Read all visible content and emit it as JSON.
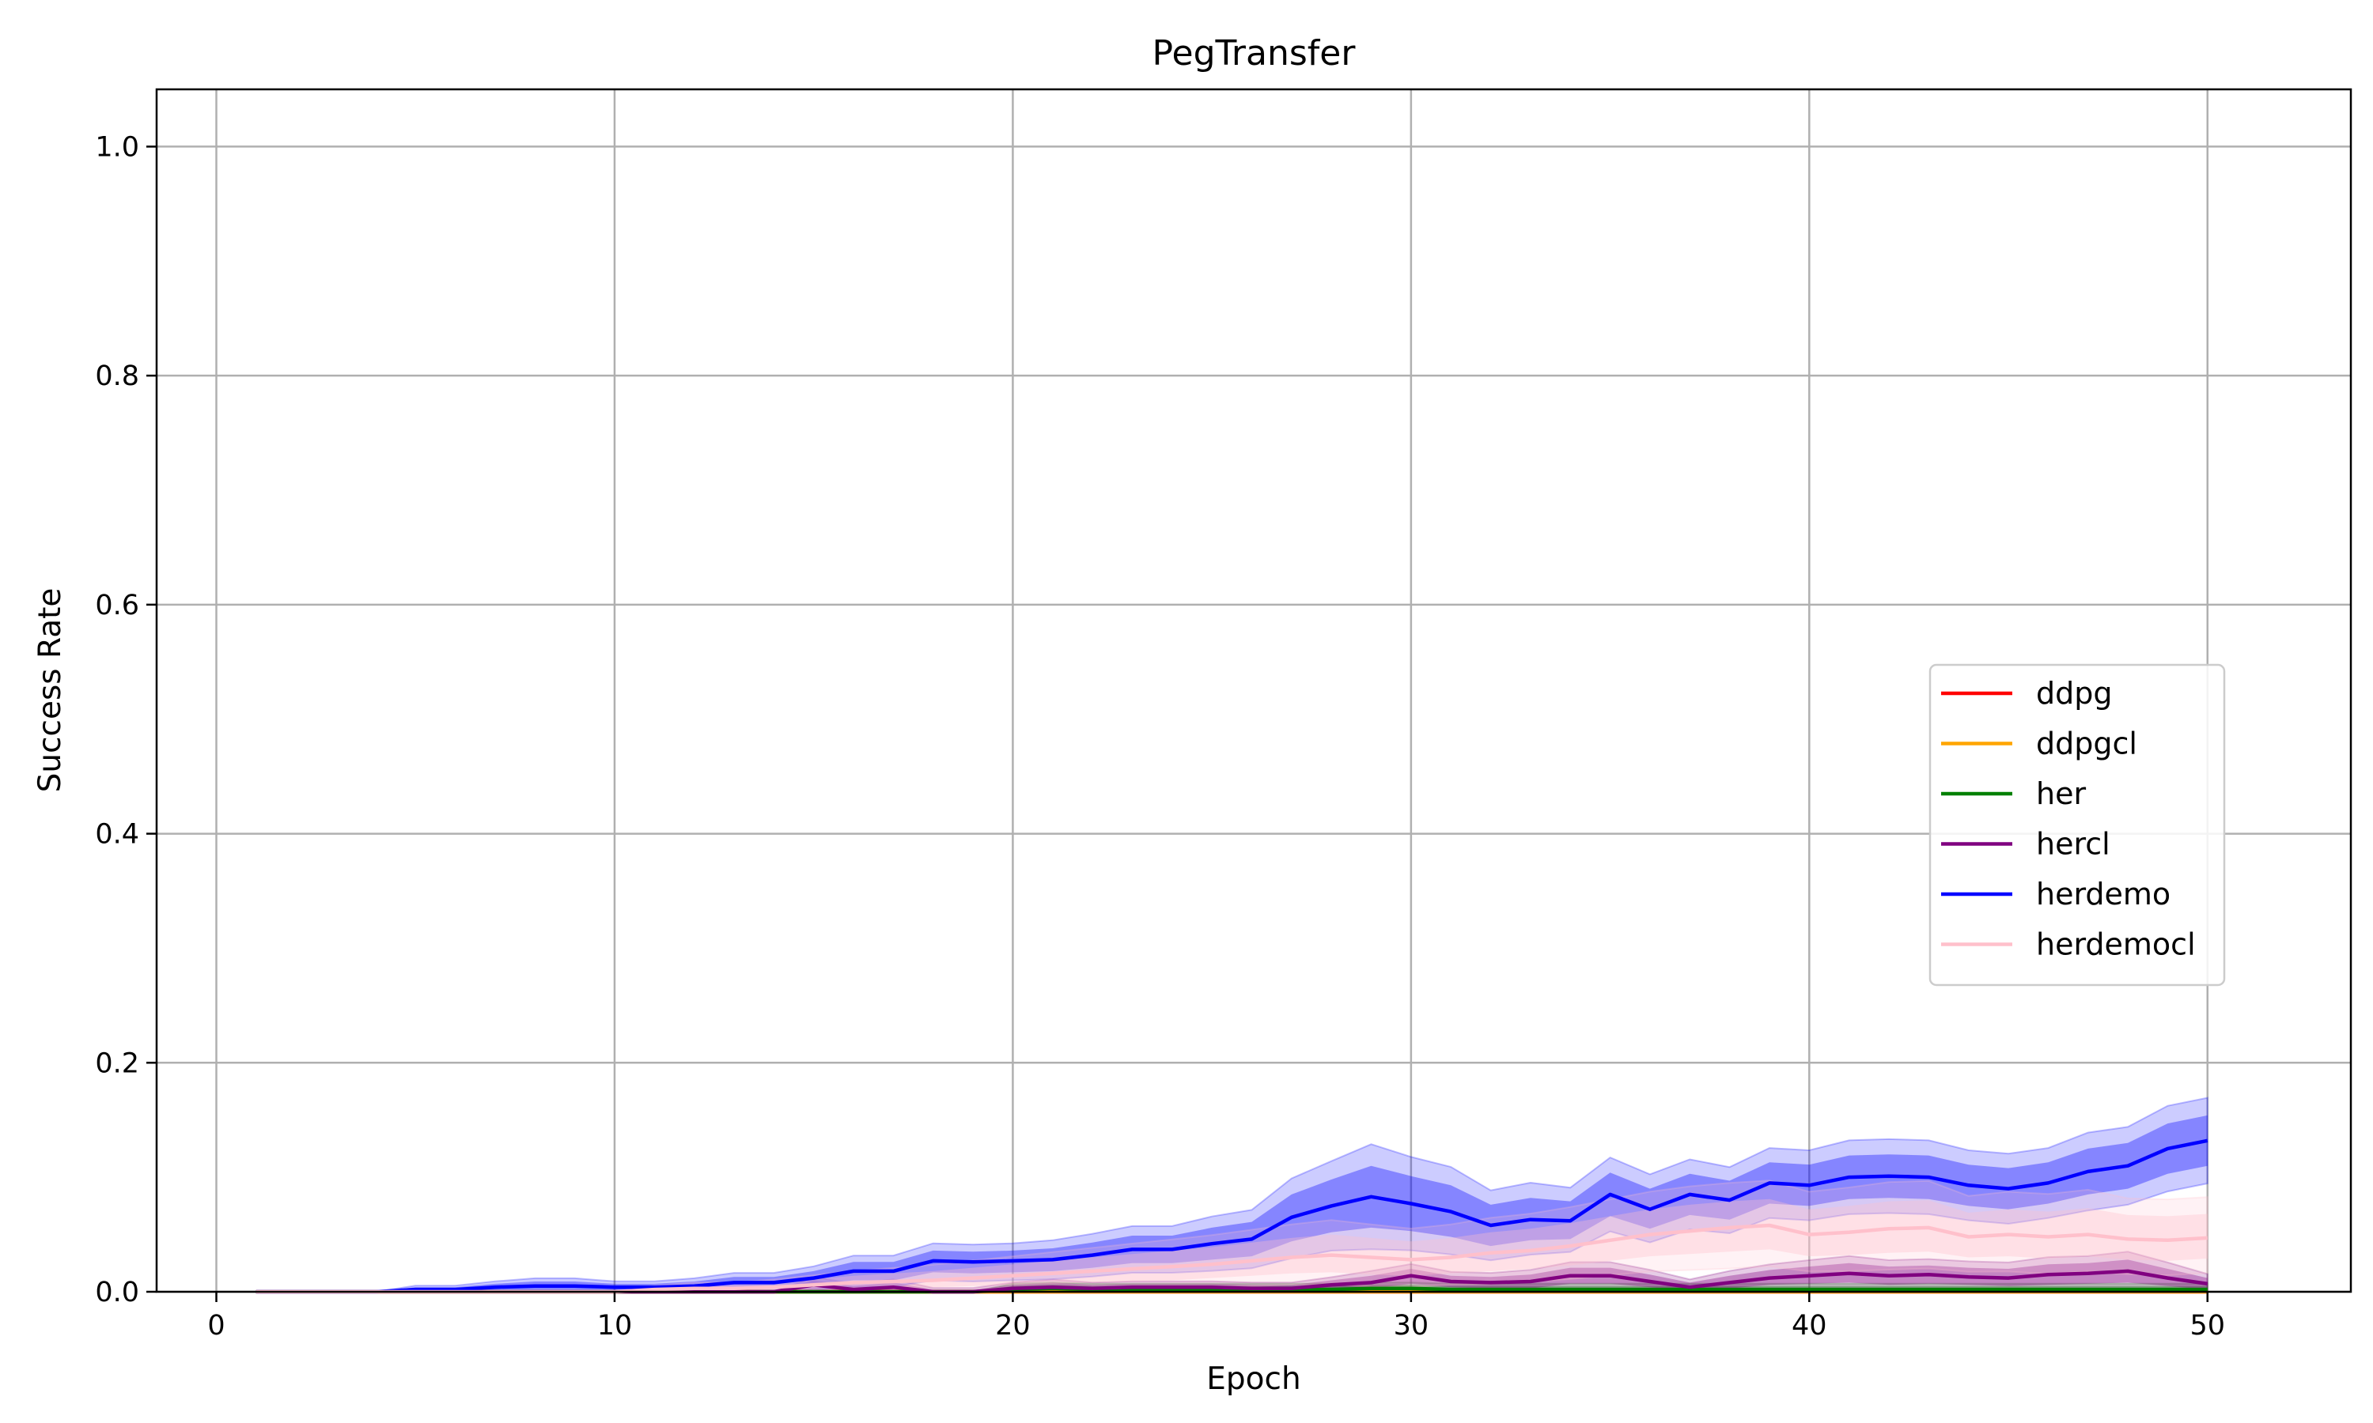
{
  "chart_data": {
    "type": "line",
    "title": "PegTransfer",
    "xlabel": "Epoch",
    "ylabel": "Success Rate",
    "xlim": [
      -1.5,
      53.6
    ],
    "ylim": [
      0,
      1.05
    ],
    "xticks": [
      0,
      10,
      20,
      30,
      40,
      50
    ],
    "yticks": [
      0.0,
      0.2,
      0.4,
      0.6,
      0.8,
      1.0
    ],
    "xtick_labels": [
      "0",
      "10",
      "20",
      "30",
      "40",
      "50"
    ],
    "ytick_labels": [
      "0.0",
      "0.2",
      "0.4",
      "0.6",
      "0.8",
      "1.0"
    ],
    "grid": true,
    "legend_position": "center-right",
    "x": [
      1,
      2,
      3,
      4,
      5,
      6,
      7,
      8,
      9,
      10,
      11,
      12,
      13,
      14,
      15,
      16,
      17,
      18,
      19,
      20,
      21,
      22,
      23,
      24,
      25,
      26,
      27,
      28,
      29,
      30,
      31,
      32,
      33,
      34,
      35,
      36,
      37,
      38,
      39,
      40,
      41,
      42,
      43,
      44,
      45,
      46,
      47,
      48,
      49,
      50
    ],
    "series": [
      {
        "name": "ddpg",
        "color": "#ff0000",
        "values": [
          0,
          0,
          0,
          0,
          0,
          0,
          0,
          0,
          0,
          0,
          0,
          0,
          0,
          0,
          0,
          0,
          0,
          0,
          0,
          0,
          0,
          0,
          0,
          0,
          0,
          0,
          0,
          0,
          0,
          0,
          0,
          0,
          0,
          0,
          0,
          0,
          0,
          0,
          0,
          0,
          0,
          0,
          0,
          0,
          0,
          0,
          0,
          0,
          0,
          0
        ],
        "lower": [
          0,
          0,
          0,
          0,
          0,
          0,
          0,
          0,
          0,
          0,
          0,
          0,
          0,
          0,
          0,
          0,
          0,
          0,
          0,
          0,
          0,
          0,
          0,
          0,
          0,
          0,
          0,
          0,
          0,
          0,
          0,
          0,
          0,
          0,
          0,
          0,
          0,
          0,
          0,
          0,
          0,
          0,
          0,
          0,
          0,
          0,
          0,
          0,
          0,
          0
        ],
        "upper": [
          0,
          0,
          0,
          0,
          0,
          0,
          0,
          0,
          0,
          0,
          0,
          0,
          0,
          0,
          0,
          0,
          0,
          0,
          0,
          0,
          0,
          0,
          0,
          0,
          0,
          0,
          0,
          0,
          0,
          0,
          0,
          0,
          0,
          0,
          0,
          0,
          0,
          0,
          0,
          0,
          0,
          0,
          0,
          0,
          0,
          0,
          0,
          0,
          0,
          0
        ]
      },
      {
        "name": "ddpgcl",
        "color": "#ffa500",
        "values": [
          0,
          0,
          0,
          0,
          0,
          0,
          0,
          0,
          0,
          0,
          0,
          0,
          0,
          0,
          0,
          0,
          0,
          0,
          0,
          0,
          0,
          0,
          0,
          0,
          0,
          0,
          0,
          0,
          0,
          0,
          0,
          0,
          0,
          0,
          0,
          0,
          0,
          0,
          0,
          0,
          0,
          0,
          0,
          0,
          0,
          0,
          0,
          0,
          0,
          0
        ],
        "lower": [
          0,
          0,
          0,
          0,
          0,
          0,
          0,
          0,
          0,
          0,
          0,
          0,
          0,
          0,
          0,
          0,
          0,
          0,
          0,
          0,
          0,
          0,
          0,
          0,
          0,
          0,
          0,
          0,
          0,
          0,
          0,
          0,
          0,
          0,
          0,
          0,
          0,
          0,
          0,
          0,
          0,
          0,
          0,
          0,
          0,
          0,
          0,
          0,
          0,
          0
        ],
        "upper": [
          0,
          0,
          0,
          0,
          0,
          0,
          0,
          0,
          0,
          0,
          0,
          0,
          0,
          0,
          0,
          0,
          0,
          0,
          0,
          0,
          0,
          0,
          0,
          0,
          0,
          0,
          0,
          0,
          0,
          0,
          0,
          0,
          0,
          0,
          0,
          0,
          0,
          0,
          0,
          0,
          0,
          0,
          0,
          0,
          0,
          0,
          0,
          0,
          0,
          0
        ]
      },
      {
        "name": "her",
        "color": "#008000",
        "values": [
          0,
          0,
          0,
          0,
          0,
          0,
          0,
          0,
          0,
          0,
          0,
          0,
          0,
          0,
          0,
          0,
          0,
          0,
          0,
          0.002,
          0.003,
          0.002,
          0.002,
          0.002,
          0.002,
          0.002,
          0.002,
          0.002,
          0.003,
          0.003,
          0.002,
          0.002,
          0.002,
          0.002,
          0.002,
          0.002,
          0.002,
          0.002,
          0.002,
          0.002,
          0.002,
          0.002,
          0.002,
          0.002,
          0.002,
          0.002,
          0.002,
          0.002,
          0.002,
          0.002
        ],
        "lower": [
          0,
          0,
          0,
          0,
          0,
          0,
          0,
          0,
          0,
          0,
          0,
          0,
          0,
          0,
          0,
          0,
          0,
          0,
          0,
          0,
          0,
          0,
          0,
          0,
          0,
          0,
          0,
          0,
          0,
          0,
          0,
          0,
          0,
          0,
          0,
          0,
          0,
          0,
          0,
          0,
          0,
          0,
          0,
          0,
          0,
          0,
          0,
          0,
          0,
          0
        ],
        "upper": [
          0,
          0,
          0,
          0,
          0,
          0,
          0,
          0,
          0,
          0,
          0,
          0,
          0,
          0,
          0,
          0,
          0,
          0,
          0,
          0.005,
          0.006,
          0.005,
          0.005,
          0.005,
          0.005,
          0.005,
          0.005,
          0.005,
          0.006,
          0.006,
          0.005,
          0.005,
          0.005,
          0.005,
          0.005,
          0.005,
          0.005,
          0.005,
          0.005,
          0.005,
          0.005,
          0.005,
          0.005,
          0.005,
          0.005,
          0.005,
          0.005,
          0.005,
          0.005,
          0.005
        ]
      },
      {
        "name": "hercl",
        "color": "#800080",
        "values": [
          0,
          0,
          0,
          0,
          0,
          0,
          0,
          0,
          0,
          0,
          0,
          0,
          0,
          0,
          0.006,
          0.002,
          0.004,
          0,
          0,
          0.003,
          0.004,
          0.003,
          0.004,
          0.004,
          0.004,
          0.003,
          0.003,
          0.006,
          0.008,
          0.014,
          0.009,
          0.008,
          0.009,
          0.014,
          0.014,
          0.009,
          0.004,
          0.008,
          0.012,
          0.014,
          0.016,
          0.014,
          0.015,
          0.013,
          0.012,
          0.015,
          0.016,
          0.018,
          0.012,
          0.007
        ],
        "lower": [
          0,
          0,
          0,
          0,
          0,
          0,
          0,
          0,
          0,
          0,
          0,
          0,
          0,
          0,
          0.002,
          0,
          0,
          0,
          0,
          0,
          0,
          0,
          0,
          0,
          0,
          0,
          0,
          0.002,
          0.003,
          0.007,
          0.004,
          0.003,
          0.003,
          0.007,
          0.007,
          0.004,
          0.001,
          0.003,
          0.006,
          0.007,
          0.008,
          0.006,
          0.007,
          0.006,
          0.005,
          0.006,
          0.007,
          0.008,
          0.005,
          0.002
        ],
        "upper": [
          0,
          0,
          0,
          0,
          0,
          0,
          0,
          0,
          0,
          0,
          0,
          0,
          0,
          0,
          0.01,
          0.005,
          0.008,
          0.002,
          0.002,
          0.006,
          0.008,
          0.006,
          0.007,
          0.007,
          0.007,
          0.006,
          0.006,
          0.01,
          0.014,
          0.02,
          0.014,
          0.013,
          0.015,
          0.021,
          0.021,
          0.015,
          0.008,
          0.014,
          0.019,
          0.022,
          0.025,
          0.022,
          0.023,
          0.021,
          0.02,
          0.024,
          0.025,
          0.028,
          0.02,
          0.012
        ]
      },
      {
        "name": "herdemo",
        "color": "#0000ff",
        "values": [
          0,
          0,
          0,
          0,
          0.002,
          0.002,
          0.004,
          0.005,
          0.005,
          0.004,
          0.004,
          0.005,
          0.008,
          0.008,
          0.012,
          0.018,
          0.018,
          0.027,
          0.026,
          0.027,
          0.028,
          0.032,
          0.037,
          0.037,
          0.042,
          0.046,
          0.065,
          0.075,
          0.083,
          0.077,
          0.07,
          0.058,
          0.063,
          0.062,
          0.085,
          0.072,
          0.085,
          0.08,
          0.095,
          0.093,
          0.1,
          0.101,
          0.1,
          0.093,
          0.09,
          0.095,
          0.105,
          0.11,
          0.125,
          0.132
        ],
        "lower": [
          0,
          0,
          0,
          0,
          0,
          0,
          0.001,
          0.001,
          0.001,
          0.001,
          0.001,
          0.001,
          0.003,
          0.003,
          0.006,
          0.01,
          0.01,
          0.017,
          0.016,
          0.017,
          0.018,
          0.021,
          0.025,
          0.025,
          0.028,
          0.031,
          0.044,
          0.052,
          0.056,
          0.053,
          0.048,
          0.04,
          0.045,
          0.046,
          0.066,
          0.055,
          0.067,
          0.063,
          0.077,
          0.075,
          0.081,
          0.082,
          0.081,
          0.075,
          0.072,
          0.077,
          0.085,
          0.09,
          0.103,
          0.11
        ],
        "upper": [
          0,
          0,
          0,
          0,
          0.004,
          0.004,
          0.007,
          0.009,
          0.009,
          0.007,
          0.007,
          0.009,
          0.013,
          0.013,
          0.018,
          0.026,
          0.026,
          0.036,
          0.035,
          0.036,
          0.038,
          0.043,
          0.049,
          0.049,
          0.056,
          0.061,
          0.085,
          0.098,
          0.11,
          0.101,
          0.093,
          0.076,
          0.082,
          0.079,
          0.104,
          0.09,
          0.103,
          0.097,
          0.113,
          0.111,
          0.119,
          0.12,
          0.119,
          0.111,
          0.108,
          0.113,
          0.125,
          0.13,
          0.147,
          0.154
        ]
      },
      {
        "name": "herdemocl",
        "color": "#ffc0cb",
        "values": [
          0,
          0,
          0,
          0,
          0,
          0,
          0,
          0,
          0,
          0,
          0.002,
          0.003,
          0.003,
          0.004,
          0.006,
          0.008,
          0.009,
          0.01,
          0.012,
          0.014,
          0.016,
          0.018,
          0.02,
          0.022,
          0.024,
          0.027,
          0.03,
          0.032,
          0.03,
          0.028,
          0.03,
          0.034,
          0.036,
          0.04,
          0.045,
          0.05,
          0.053,
          0.056,
          0.058,
          0.05,
          0.052,
          0.055,
          0.056,
          0.048,
          0.05,
          0.048,
          0.05,
          0.046,
          0.045,
          0.047
        ],
        "lower": [
          0,
          0,
          0,
          0,
          0,
          0,
          0,
          0,
          0,
          0,
          0,
          0.001,
          0.001,
          0.001,
          0.002,
          0.003,
          0.003,
          0.004,
          0.005,
          0.006,
          0.007,
          0.008,
          0.009,
          0.01,
          0.012,
          0.014,
          0.016,
          0.017,
          0.015,
          0.014,
          0.016,
          0.018,
          0.02,
          0.023,
          0.027,
          0.031,
          0.033,
          0.035,
          0.037,
          0.031,
          0.032,
          0.034,
          0.035,
          0.03,
          0.031,
          0.029,
          0.031,
          0.028,
          0.027,
          0.029
        ],
        "upper": [
          0,
          0,
          0,
          0,
          0,
          0,
          0,
          0,
          0,
          0,
          0.004,
          0.006,
          0.006,
          0.008,
          0.011,
          0.014,
          0.016,
          0.018,
          0.021,
          0.024,
          0.027,
          0.03,
          0.033,
          0.036,
          0.039,
          0.043,
          0.047,
          0.05,
          0.047,
          0.044,
          0.047,
          0.052,
          0.055,
          0.06,
          0.066,
          0.072,
          0.076,
          0.079,
          0.081,
          0.072,
          0.075,
          0.079,
          0.08,
          0.069,
          0.072,
          0.07,
          0.073,
          0.067,
          0.066,
          0.068
        ]
      }
    ]
  }
}
